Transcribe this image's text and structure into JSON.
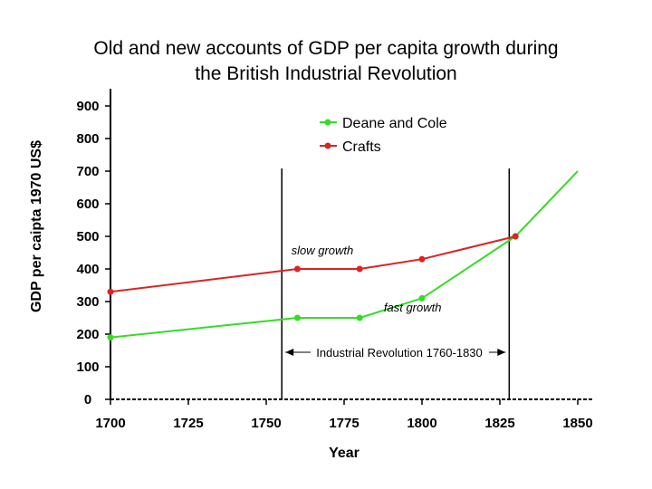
{
  "chart_data": {
    "type": "line",
    "title": [
      "Old and new accounts of GDP per capita growth during",
      "the British Industrial Revolution"
    ],
    "xlabel": "Year",
    "ylabel": "GDP per caipta 1970 US$",
    "xlim": [
      1700,
      1850
    ],
    "ylim": [
      0,
      900
    ],
    "x_ticks": [
      1700,
      1725,
      1750,
      1775,
      1800,
      1825,
      1850
    ],
    "y_ticks": [
      0,
      100,
      200,
      300,
      400,
      500,
      600,
      700,
      800,
      900
    ],
    "grid": false,
    "legend_position": "top-right",
    "series": [
      {
        "name": "Deane and Cole",
        "color": "#33dd22",
        "x": [
          1700,
          1760,
          1780,
          1800,
          1830,
          1850
        ],
        "y": [
          190,
          250,
          250,
          310,
          500,
          700
        ],
        "marker_x": [
          1700,
          1760,
          1780,
          1800,
          1830
        ]
      },
      {
        "name": "Crafts",
        "color": "#dd2222",
        "x": [
          1700,
          1760,
          1780,
          1800,
          1830
        ],
        "y": [
          330,
          400,
          400,
          430,
          500
        ],
        "marker_x": [
          1700,
          1760,
          1780,
          1800,
          1830
        ]
      }
    ],
    "vertical_lines": [
      1755,
      1828
    ],
    "annotations": [
      {
        "text": "slow growth",
        "x": 1768,
        "y": 445
      },
      {
        "text": "fast growth",
        "x": 1797,
        "y": 270
      }
    ],
    "period": {
      "text": "Industrial  Revolution 1760-1830",
      "x_start": 1755,
      "x_end": 1828,
      "y": 150
    }
  }
}
